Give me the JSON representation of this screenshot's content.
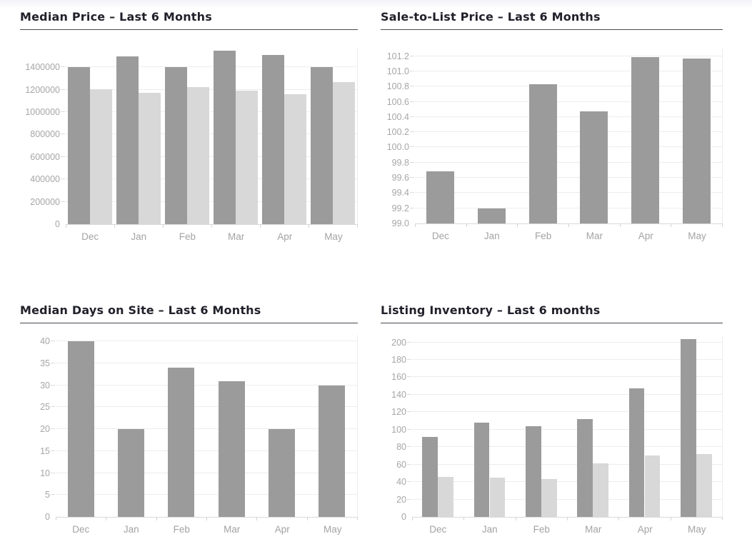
{
  "page": {
    "background": "#ffffff"
  },
  "colors": {
    "title_text": "#21212b",
    "title_rule": "#4a4a52",
    "axis_label": "#a6a6a6",
    "gridline": "#ededed",
    "baseline": "#d9d9d9",
    "bar_dark": "#9b9b9b",
    "bar_light": "#d8d8d8"
  },
  "chart_data": [
    {
      "id": "median-price",
      "type": "bar",
      "title": "Median Price – Last 6 Months",
      "categories": [
        "Dec",
        "Jan",
        "Feb",
        "Mar",
        "Apr",
        "May"
      ],
      "series": [
        {
          "name": "series-1",
          "color": "#9b9b9b",
          "values": [
            1400000,
            1500000,
            1400000,
            1550000,
            1510000,
            1400000
          ]
        },
        {
          "name": "series-2",
          "color": "#d8d8d8",
          "values": [
            1205000,
            1170000,
            1225000,
            1190000,
            1160000,
            1265000
          ]
        }
      ],
      "ylim": [
        0,
        1580000
      ],
      "yticks": [
        "0",
        "200000",
        "400000",
        "600000",
        "800000",
        "1000000",
        "1200000",
        "1400000"
      ],
      "grid": true,
      "legend": "none",
      "layout": {
        "ylabel_width": 64,
        "group_ratio": 0.9
      }
    },
    {
      "id": "sale-to-list-price",
      "type": "bar",
      "title": "Sale-to-List Price – Last 6 Months",
      "categories": [
        "Dec",
        "Jan",
        "Feb",
        "Mar",
        "Apr",
        "May"
      ],
      "series": [
        {
          "name": "series-1",
          "color": "#9b9b9b",
          "values": [
            99.69,
            99.2,
            100.83,
            100.47,
            101.19,
            101.17
          ]
        }
      ],
      "ylim": [
        99.0,
        101.3
      ],
      "yticks": [
        "99.0",
        "99.2",
        "99.4",
        "99.6",
        "99.8",
        "100.0",
        "100.2",
        "100.4",
        "100.6",
        "100.8",
        "101.0",
        "101.2"
      ],
      "grid": true,
      "legend": "none",
      "layout": {
        "ylabel_width": 48,
        "group_ratio": 0.54
      }
    },
    {
      "id": "median-days-on-site",
      "type": "bar",
      "title": "Median Days on Site – Last 6 Months",
      "categories": [
        "Dec",
        "Jan",
        "Feb",
        "Mar",
        "Apr",
        "May"
      ],
      "series": [
        {
          "name": "series-1",
          "color": "#9b9b9b",
          "values": [
            40,
            20,
            34,
            31,
            20,
            30
          ]
        }
      ],
      "ylim": [
        0,
        41.5
      ],
      "yticks": [
        "0",
        "5",
        "10",
        "15",
        "20",
        "25",
        "30",
        "35",
        "40"
      ],
      "grid": true,
      "legend": "none",
      "layout": {
        "ylabel_width": 50,
        "group_ratio": 0.53
      }
    },
    {
      "id": "listing-inventory",
      "type": "bar",
      "title": "Listing Inventory – Last 6 months",
      "categories": [
        "Dec",
        "Jan",
        "Feb",
        "Mar",
        "Apr",
        "May"
      ],
      "series": [
        {
          "name": "series-1",
          "color": "#9b9b9b",
          "values": [
            92,
            108,
            104,
            112,
            147,
            204
          ]
        },
        {
          "name": "series-2",
          "color": "#d8d8d8",
          "values": [
            46,
            45,
            43,
            61,
            70,
            72
          ]
        }
      ],
      "ylim": [
        0,
        207
      ],
      "yticks": [
        "0",
        "20",
        "40",
        "60",
        "80",
        "100",
        "120",
        "140",
        "160",
        "180",
        "200"
      ],
      "grid": true,
      "legend": "none",
      "layout": {
        "ylabel_width": 44,
        "group_ratio": 0.6
      }
    }
  ]
}
